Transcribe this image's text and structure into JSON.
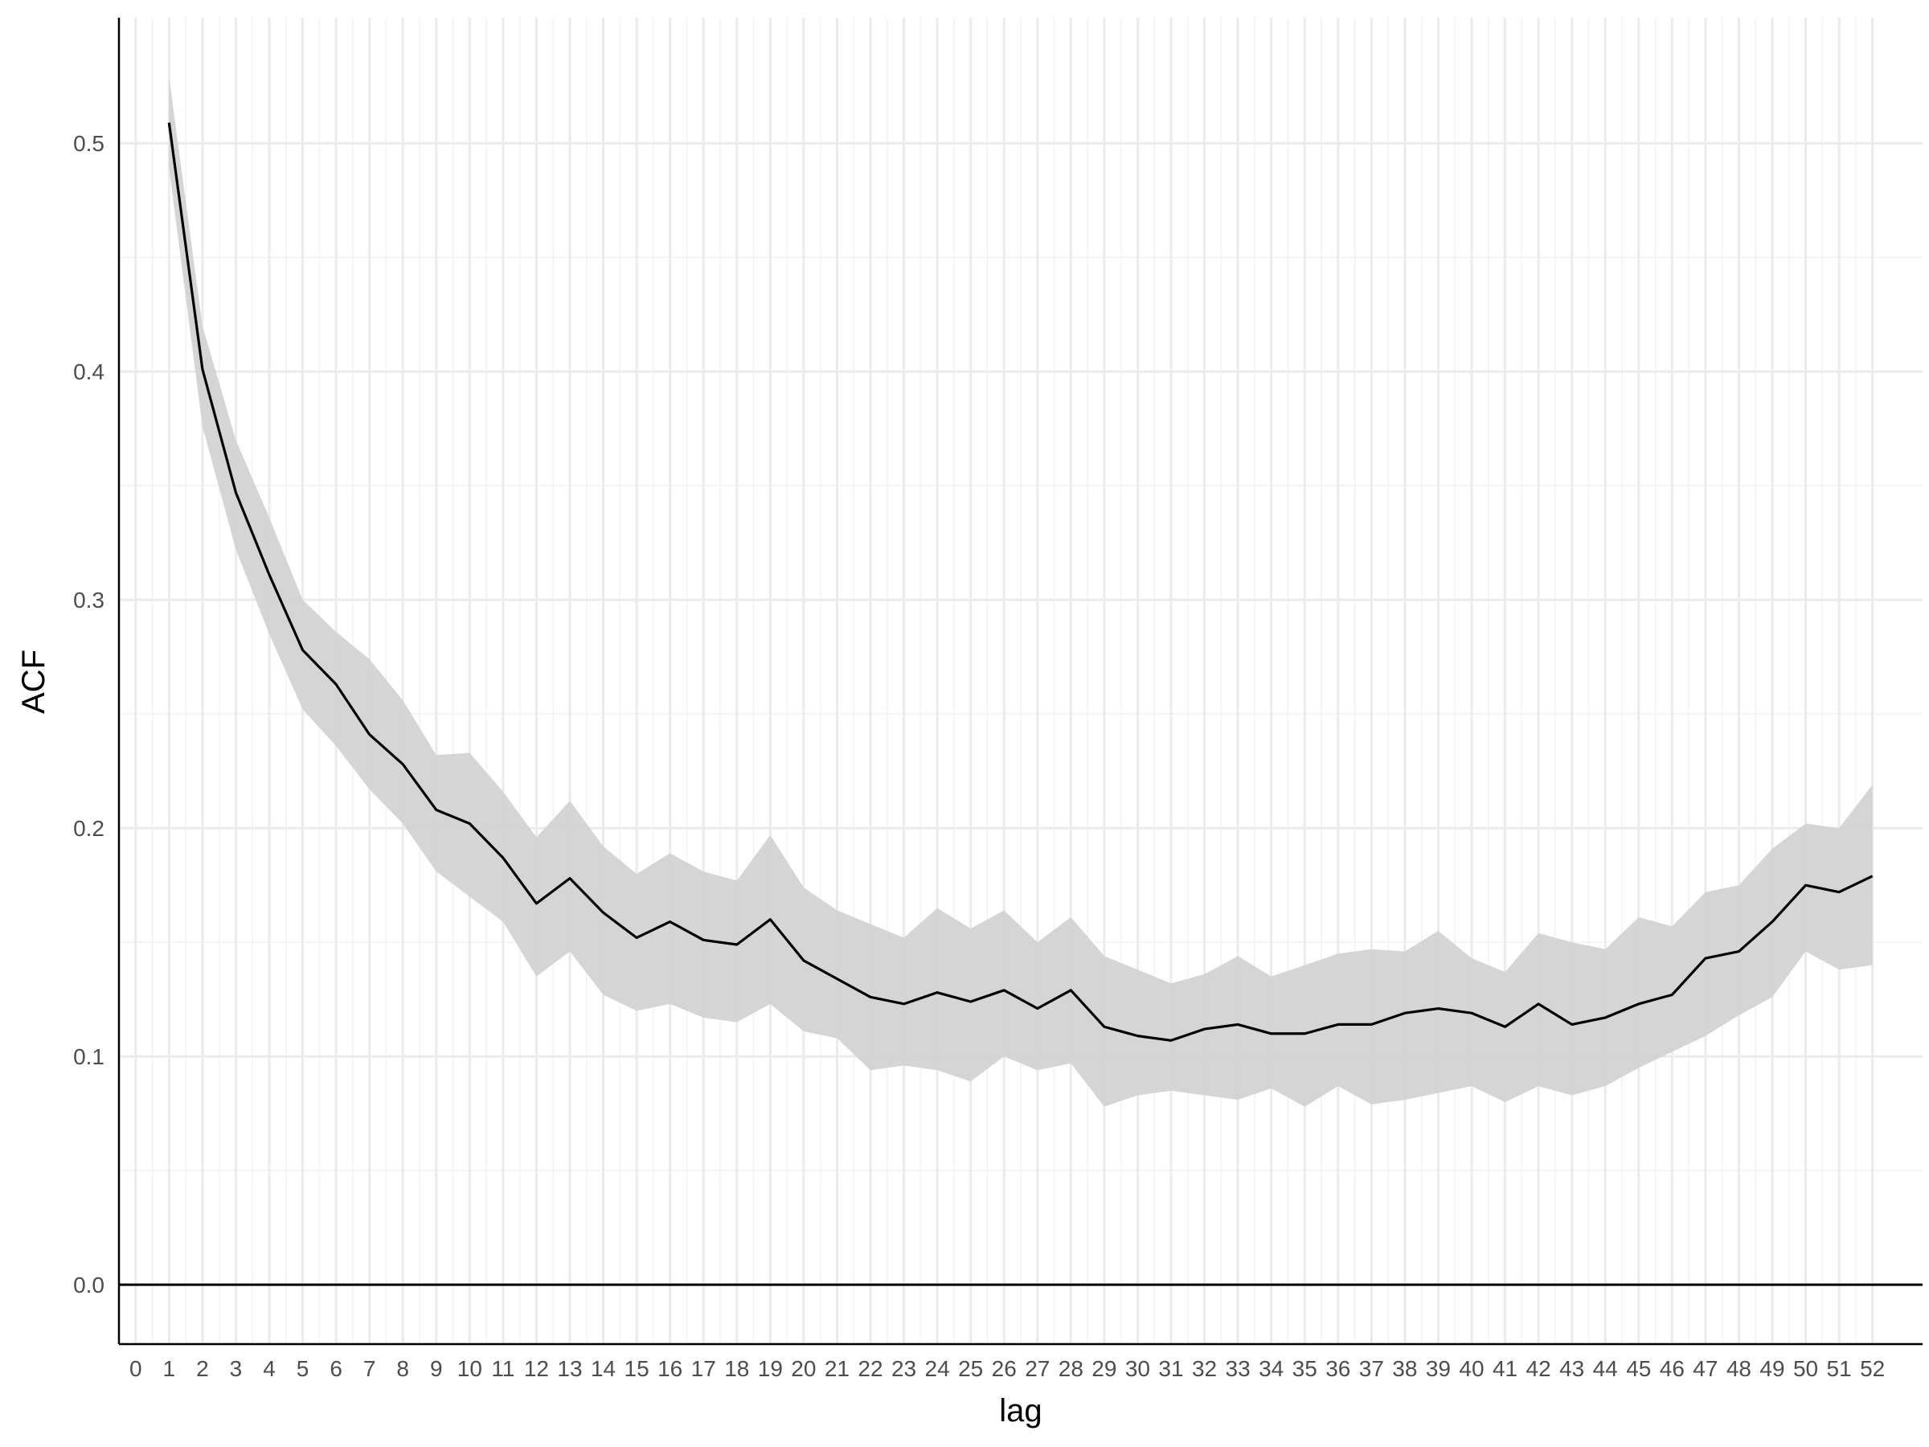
{
  "chart_data": {
    "type": "line",
    "title": "",
    "xlabel": "lag",
    "ylabel": "ACF",
    "xlim": [
      -0.5,
      53.5
    ],
    "ylim": [
      -0.026,
      0.555
    ],
    "x_ticks": [
      0,
      1,
      2,
      3,
      4,
      5,
      6,
      7,
      8,
      9,
      10,
      11,
      12,
      13,
      14,
      15,
      16,
      17,
      18,
      19,
      20,
      21,
      22,
      23,
      24,
      25,
      26,
      27,
      28,
      29,
      30,
      31,
      32,
      33,
      34,
      35,
      36,
      37,
      38,
      39,
      40,
      41,
      42,
      43,
      44,
      45,
      46,
      47,
      48,
      49,
      50,
      51,
      52
    ],
    "y_ticks": [
      {
        "value": 0.0,
        "label": "0.0"
      },
      {
        "value": 0.1,
        "label": "0.1"
      },
      {
        "value": 0.2,
        "label": "0.2"
      },
      {
        "value": 0.3,
        "label": "0.3"
      },
      {
        "value": 0.4,
        "label": "0.4"
      },
      {
        "value": 0.5,
        "label": "0.5"
      }
    ],
    "grid": true,
    "reference_line": 0,
    "series": [
      {
        "x": [
          1,
          2,
          3,
          4,
          5,
          6,
          7,
          8,
          9,
          10,
          11,
          12,
          13,
          14,
          15,
          16,
          17,
          18,
          19,
          20,
          21,
          22,
          23,
          24,
          25,
          26,
          27,
          28,
          29,
          30,
          31,
          32,
          33,
          34,
          35,
          36,
          37,
          38,
          39,
          40,
          41,
          42,
          43,
          44,
          45,
          46,
          47,
          48,
          49,
          50,
          51,
          52
        ],
        "values": [
          0.509,
          0.401,
          0.347,
          0.311,
          0.278,
          0.263,
          0.241,
          0.228,
          0.208,
          0.202,
          0.187,
          0.167,
          0.178,
          0.163,
          0.152,
          0.159,
          0.151,
          0.149,
          0.16,
          0.142,
          0.134,
          0.126,
          0.123,
          0.128,
          0.124,
          0.129,
          0.121,
          0.129,
          0.113,
          0.109,
          0.107,
          0.112,
          0.114,
          0.11,
          0.11,
          0.114,
          0.114,
          0.119,
          0.121,
          0.119,
          0.113,
          0.123,
          0.114,
          0.117,
          0.123,
          0.127,
          0.143,
          0.146,
          0.159,
          0.175,
          0.172,
          0.179
        ],
        "lower": [
          0.489,
          0.376,
          0.322,
          0.285,
          0.252,
          0.236,
          0.217,
          0.202,
          0.181,
          0.17,
          0.159,
          0.135,
          0.146,
          0.127,
          0.12,
          0.123,
          0.117,
          0.115,
          0.123,
          0.111,
          0.108,
          0.094,
          0.096,
          0.094,
          0.089,
          0.1,
          0.094,
          0.097,
          0.078,
          0.083,
          0.085,
          0.083,
          0.081,
          0.086,
          0.078,
          0.087,
          0.079,
          0.081,
          0.084,
          0.087,
          0.08,
          0.087,
          0.083,
          0.087,
          0.095,
          0.102,
          0.109,
          0.118,
          0.126,
          0.146,
          0.138,
          0.14
        ],
        "upper": [
          0.529,
          0.42,
          0.37,
          0.336,
          0.3,
          0.286,
          0.274,
          0.256,
          0.232,
          0.233,
          0.216,
          0.196,
          0.212,
          0.192,
          0.18,
          0.189,
          0.181,
          0.177,
          0.197,
          0.174,
          0.164,
          0.158,
          0.152,
          0.165,
          0.156,
          0.164,
          0.15,
          0.161,
          0.144,
          0.138,
          0.132,
          0.136,
          0.144,
          0.135,
          0.14,
          0.145,
          0.147,
          0.146,
          0.155,
          0.143,
          0.137,
          0.154,
          0.15,
          0.147,
          0.161,
          0.157,
          0.172,
          0.175,
          0.191,
          0.202,
          0.2,
          0.219
        ]
      }
    ],
    "colors": {
      "line": "#000000",
      "band": "#d3d3d3",
      "grid_major": "#ebebeb",
      "grid_minor": "#f2f2f2",
      "axis": "#000000",
      "tick_text": "#4d4d4d"
    }
  }
}
